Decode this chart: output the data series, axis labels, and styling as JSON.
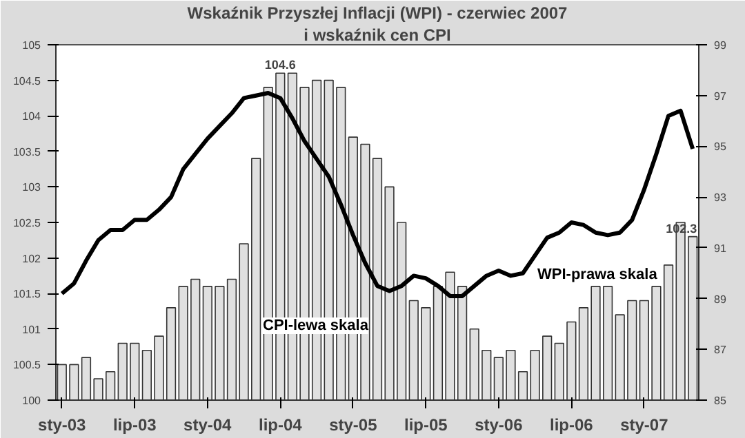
{
  "chart_data": {
    "type": "bar",
    "title": "Wskaźnik Przyszłej Inflacji (WPI) - czerwiec 2007",
    "subtitle": "i wskaźnik cen CPI",
    "categories": [
      "sty-03",
      null,
      null,
      null,
      null,
      null,
      "lip-03",
      null,
      null,
      null,
      null,
      null,
      "sty-04",
      null,
      null,
      null,
      null,
      null,
      "lip-04",
      null,
      null,
      null,
      null,
      null,
      "sty-05",
      null,
      null,
      null,
      null,
      null,
      "lip-05",
      null,
      null,
      null,
      null,
      null,
      "sty-06",
      null,
      null,
      null,
      null,
      null,
      "lip-06",
      null,
      null,
      null,
      null,
      null,
      "sty-07",
      null,
      null,
      null,
      null
    ],
    "series": [
      {
        "name": "CPI-lewa skala",
        "color": "#e0e0e0",
        "values": [
          100.5,
          100.5,
          100.6,
          100.3,
          100.4,
          100.8,
          100.8,
          100.7,
          100.9,
          101.3,
          101.6,
          101.7,
          101.6,
          101.6,
          101.7,
          102.2,
          103.4,
          104.4,
          104.6,
          104.6,
          104.4,
          104.5,
          104.5,
          104.4,
          103.7,
          103.6,
          103.4,
          103.0,
          102.5,
          101.4,
          101.3,
          101.6,
          101.8,
          101.6,
          101.0,
          100.7,
          100.6,
          100.7,
          100.4,
          100.7,
          100.9,
          100.8,
          101.1,
          101.3,
          101.6,
          101.6,
          101.2,
          101.4,
          101.4,
          101.6,
          101.9,
          102.5,
          102.3
        ],
        "value_labels": [
          null,
          null,
          null,
          null,
          null,
          null,
          null,
          null,
          null,
          null,
          null,
          null,
          null,
          null,
          null,
          null,
          null,
          null,
          "104.6",
          null,
          null,
          null,
          null,
          null,
          null,
          null,
          null,
          null,
          null,
          null,
          null,
          null,
          null,
          null,
          null,
          null,
          null,
          null,
          null,
          null,
          null,
          null,
          null,
          null,
          null,
          null,
          null,
          null,
          null,
          null,
          null,
          null,
          "102.3"
        ]
      },
      {
        "name": "WPI-prawa skala",
        "type": "line",
        "axis": "y2",
        "color": "#000000",
        "values": [
          89.2,
          89.6,
          90.5,
          91.3,
          91.7,
          91.7,
          92.1,
          92.1,
          92.5,
          93.0,
          94.1,
          94.7,
          95.3,
          95.8,
          96.3,
          96.9,
          97.0,
          97.1,
          96.9,
          96.1,
          95.2,
          94.5,
          93.8,
          92.7,
          91.5,
          90.4,
          89.5,
          89.3,
          89.5,
          89.9,
          89.8,
          89.5,
          89.1,
          89.1,
          89.5,
          89.9,
          90.1,
          89.9,
          90.0,
          90.7,
          91.4,
          91.6,
          92.0,
          91.9,
          91.6,
          91.5,
          91.6,
          92.1,
          93.3,
          94.7,
          96.2,
          96.4,
          94.9
        ]
      }
    ],
    "ylim": [
      100,
      105
    ],
    "yticks": [
      100,
      100.5,
      101,
      101.5,
      102,
      102.5,
      103,
      103.5,
      104,
      104.5,
      105
    ],
    "y2lim": [
      85,
      99
    ],
    "y2ticks": [
      85,
      87,
      89,
      91,
      93,
      95,
      97,
      99
    ],
    "grid": false
  }
}
